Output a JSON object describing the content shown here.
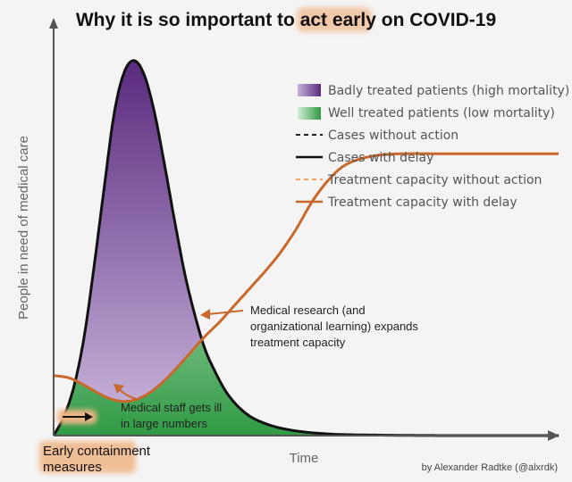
{
  "chart_data": {
    "type": "area",
    "title_parts": [
      "Why it is so important to ",
      "act early",
      " on COVID-19"
    ],
    "ylabel": "People in need of medical care",
    "xlabel": "Time",
    "credit": "by Alexander Radtke (@alxrdk)",
    "legend_position": "top-right",
    "legend": [
      {
        "label": "Badly treated patients (high mortality)",
        "kind": "swatch",
        "color": "#7b4b9a"
      },
      {
        "label": "Well treated patients (low mortality)",
        "kind": "swatch",
        "color": "#3aa34e"
      },
      {
        "label": "Cases without action",
        "kind": "dashed",
        "color": "#222222"
      },
      {
        "label": "Cases with delay",
        "kind": "solid",
        "color": "#111111"
      },
      {
        "label": "Treatment capacity without action",
        "kind": "dashed",
        "color": "#f0a45a"
      },
      {
        "label": "Treatment capacity with delay",
        "kind": "solid",
        "color": "#c8682a"
      }
    ],
    "xlim": [
      0,
      100
    ],
    "ylim": [
      0,
      100
    ],
    "series": [
      {
        "name": "Cases with delay",
        "x": [
          0,
          2,
          4,
          6,
          8,
          10,
          12,
          14,
          16,
          18,
          20,
          22,
          24,
          26,
          28,
          30,
          32,
          34,
          36,
          38,
          40,
          43,
          46,
          50,
          55,
          60,
          70,
          80,
          90,
          100
        ],
        "y": [
          0,
          5,
          13,
          26,
          45,
          66,
          86,
          97,
          100,
          96,
          86,
          72,
          57,
          43,
          32,
          23,
          17,
          12,
          8.5,
          6,
          4.3,
          2.7,
          1.7,
          0.9,
          0.4,
          0.2,
          0.05,
          0,
          0,
          0
        ]
      },
      {
        "name": "Treatment capacity with delay",
        "x": [
          0,
          3,
          6,
          9,
          12,
          15,
          18,
          21,
          24,
          27,
          30,
          33,
          36,
          39,
          42,
          45,
          48,
          51,
          54,
          57,
          60,
          63,
          66,
          70,
          75,
          80,
          85,
          90,
          95,
          100
        ],
        "y": [
          16,
          15.4,
          13.5,
          11.2,
          9.5,
          9.2,
          10.6,
          13.5,
          17.5,
          22,
          26.5,
          30.5,
          35,
          39.5,
          44,
          49,
          55,
          62,
          67.5,
          71.5,
          73.5,
          74.5,
          75,
          75.2,
          75.2,
          75.2,
          75.2,
          75.2,
          75.2,
          75.2
        ]
      }
    ]
  },
  "annotations": {
    "staff_ill_line1": "Medical staff gets ill",
    "staff_ill_line2": "in large numbers",
    "research_line1": "Medical research (and",
    "research_line2": "organizational learning) expands",
    "research_line3": "treatment capacity",
    "early_line1": "Early containment",
    "early_line2": "measures"
  },
  "colors": {
    "title_highlight": "#f2c9a8",
    "capacity": "#c8682a",
    "early_highlight": "#f0b585",
    "purple_top": "#5a2a7e",
    "purple_bottom": "#c9b6dc",
    "green_top": "#ddf0dd",
    "green_bottom": "#2f9a44"
  }
}
